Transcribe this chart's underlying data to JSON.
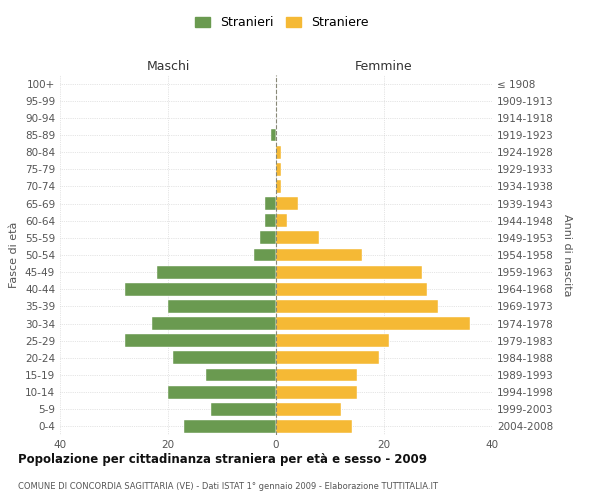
{
  "age_groups": [
    "0-4",
    "5-9",
    "10-14",
    "15-19",
    "20-24",
    "25-29",
    "30-34",
    "35-39",
    "40-44",
    "45-49",
    "50-54",
    "55-59",
    "60-64",
    "65-69",
    "70-74",
    "75-79",
    "80-84",
    "85-89",
    "90-94",
    "95-99",
    "100+"
  ],
  "birth_years": [
    "2004-2008",
    "1999-2003",
    "1994-1998",
    "1989-1993",
    "1984-1988",
    "1979-1983",
    "1974-1978",
    "1969-1973",
    "1964-1968",
    "1959-1963",
    "1954-1958",
    "1949-1953",
    "1944-1948",
    "1939-1943",
    "1934-1938",
    "1929-1933",
    "1924-1928",
    "1919-1923",
    "1914-1918",
    "1909-1913",
    "≤ 1908"
  ],
  "males": [
    17,
    12,
    20,
    13,
    19,
    28,
    23,
    20,
    28,
    22,
    4,
    3,
    2,
    2,
    0,
    0,
    0,
    1,
    0,
    0,
    0
  ],
  "females": [
    14,
    12,
    15,
    15,
    19,
    21,
    36,
    30,
    28,
    27,
    16,
    8,
    2,
    4,
    1,
    1,
    1,
    0,
    0,
    0,
    0
  ],
  "male_color": "#6a9a50",
  "female_color": "#f5b935",
  "background_color": "#ffffff",
  "grid_color": "#cccccc",
  "bar_edge_color": "#ffffff",
  "title": "Popolazione per cittadinanza straniera per età e sesso - 2009",
  "subtitle": "COMUNE DI CONCORDIA SAGITTARIA (VE) - Dati ISTAT 1° gennaio 2009 - Elaborazione TUTTITALIA.IT",
  "ylabel_left": "Fasce di età",
  "ylabel_right": "Anni di nascita",
  "xlabel_left": "Maschi",
  "xlabel_right": "Femmine",
  "legend_stranieri": "Stranieri",
  "legend_straniere": "Straniere",
  "xlim": 40
}
